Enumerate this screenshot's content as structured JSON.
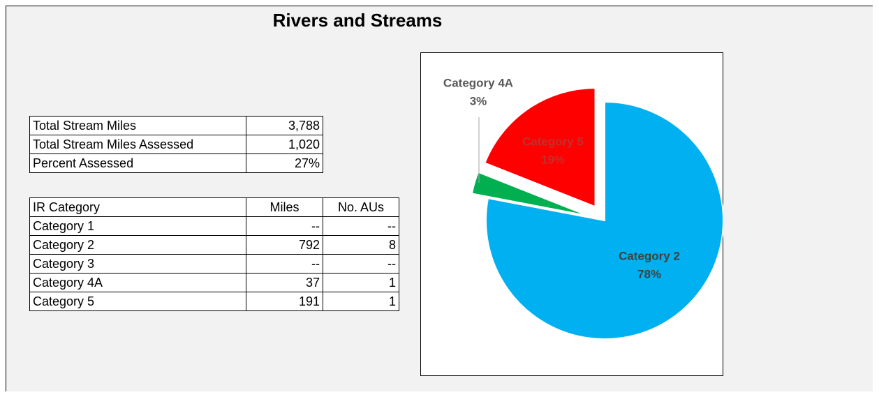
{
  "title": "Rivers and Streams",
  "summary_table": {
    "rows": [
      [
        "Total Stream Miles",
        "3,788"
      ],
      [
        "Total Stream Miles Assessed",
        "1,020"
      ],
      [
        "Percent Assessed",
        "27%"
      ]
    ]
  },
  "category_table": {
    "header": [
      "IR Category",
      "Miles",
      "No. AUs"
    ],
    "rows": [
      [
        "Category 1",
        "--",
        "--"
      ],
      [
        "Category 2",
        "792",
        "8"
      ],
      [
        "Category 3",
        "--",
        "--"
      ],
      [
        "Category 4A",
        "37",
        "1"
      ],
      [
        "Category 5",
        "191",
        "1"
      ]
    ]
  },
  "chart_data": {
    "type": "pie",
    "categories": [
      "Category 2",
      "Category 4A",
      "Category 5"
    ],
    "values": [
      78,
      3,
      19
    ],
    "value_labels": [
      "78%",
      "3%",
      "19%"
    ],
    "colors": [
      "#00b0f0",
      "#00b050",
      "#ff0000"
    ],
    "exploded": [
      false,
      true,
      true
    ]
  }
}
